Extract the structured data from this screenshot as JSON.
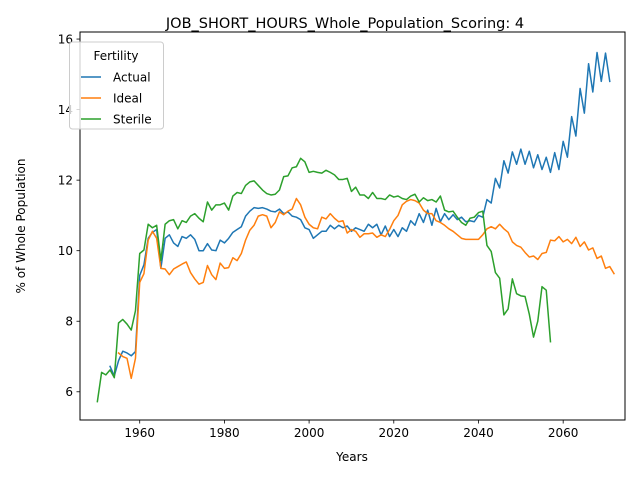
{
  "chart_data": {
    "type": "line",
    "title": "JOB_SHORT_HOURS_Whole_Population_Scoring: 4",
    "xlabel": "Years",
    "ylabel": "% of Whole Population",
    "xlim": [
      1945.9,
      2074.6
    ],
    "ylim": [
      5.2,
      16.2
    ],
    "x_ticks": [
      1960,
      1980,
      2000,
      2020,
      2040,
      2060
    ],
    "y_ticks": [
      6,
      8,
      10,
      12,
      14,
      16
    ],
    "grid": false,
    "legend": {
      "title": "Fertility",
      "placement": "upper-left"
    },
    "series": [
      {
        "name": "Actual",
        "color": "#1f77b4",
        "x_start": 1953,
        "values": [
          6.72,
          6.45,
          6.88,
          7.15,
          7.1,
          7.02,
          7.14,
          9.3,
          9.6,
          10.35,
          10.52,
          10.6,
          9.5,
          10.35,
          10.45,
          10.22,
          10.12,
          10.4,
          10.35,
          10.45,
          10.32,
          10.0,
          10.0,
          10.2,
          10.02,
          10.0,
          10.3,
          10.22,
          10.35,
          10.52,
          10.6,
          10.68,
          10.98,
          11.12,
          11.22,
          11.2,
          11.22,
          11.18,
          11.12,
          11.1,
          11.18,
          11.05,
          11.1,
          10.98,
          10.95,
          10.88,
          10.65,
          10.6,
          10.35,
          10.45,
          10.55,
          10.55,
          10.72,
          10.62,
          10.72,
          10.65,
          10.7,
          10.55,
          10.65,
          10.6,
          10.55,
          10.75,
          10.65,
          10.75,
          10.45,
          10.7,
          10.4,
          10.6,
          10.4,
          10.65,
          10.55,
          10.85,
          10.72,
          11.05,
          10.8,
          11.15,
          10.72,
          11.2,
          10.82,
          11.05,
          10.88,
          11.02,
          10.88,
          10.95,
          10.82,
          10.85,
          10.82,
          11.0,
          10.95,
          11.45,
          11.35,
          12.05,
          11.78,
          12.55,
          12.2,
          12.8,
          12.45,
          12.88,
          12.45,
          12.82,
          12.35,
          12.72,
          12.3,
          12.65,
          12.22,
          12.78,
          12.3,
          13.1,
          12.65,
          13.8,
          13.25,
          14.6,
          13.9,
          15.3,
          14.5,
          15.62,
          14.8,
          15.6,
          14.8
        ]
      },
      {
        "name": "Ideal",
        "color": "#ff7f0e",
        "x_start": 1955,
        "values": [
          7.1,
          7.0,
          6.95,
          6.38,
          6.95,
          9.1,
          9.35,
          10.3,
          10.55,
          10.35,
          9.5,
          9.48,
          9.32,
          9.48,
          9.55,
          9.62,
          9.68,
          9.38,
          9.2,
          9.05,
          9.1,
          9.58,
          9.32,
          9.18,
          9.65,
          9.5,
          9.52,
          9.8,
          9.72,
          9.92,
          10.3,
          10.58,
          10.72,
          10.98,
          11.02,
          10.98,
          10.65,
          10.8,
          11.1,
          11.02,
          11.12,
          11.18,
          11.48,
          11.3,
          10.95,
          10.75,
          10.65,
          10.62,
          10.95,
          10.9,
          11.05,
          10.92,
          10.82,
          10.85,
          10.5,
          10.6,
          10.55,
          10.38,
          10.48,
          10.48,
          10.5,
          10.38,
          10.45,
          10.4,
          10.6,
          10.85,
          11.0,
          11.3,
          11.4,
          11.45,
          11.42,
          11.35,
          11.15,
          11.05,
          11.05,
          10.85,
          10.8,
          10.72,
          10.62,
          10.55,
          10.45,
          10.35,
          10.32,
          10.32,
          10.32,
          10.32,
          10.45,
          10.62,
          10.68,
          10.62,
          10.75,
          10.62,
          10.52,
          10.25,
          10.15,
          10.1,
          9.95,
          9.82,
          9.85,
          9.75,
          9.92,
          9.95,
          10.3,
          10.28,
          10.4,
          10.25,
          10.32,
          10.2,
          10.38,
          10.12,
          10.25,
          10.02,
          10.08,
          9.78,
          9.85,
          9.5,
          9.55,
          9.35
        ]
      },
      {
        "name": "Sterile",
        "color": "#2ca02c",
        "x_start": 1950,
        "values": [
          5.72,
          6.55,
          6.48,
          6.62,
          6.4,
          7.95,
          8.05,
          7.92,
          7.75,
          8.3,
          9.92,
          10.02,
          10.75,
          10.65,
          10.72,
          9.72,
          10.75,
          10.85,
          10.88,
          10.62,
          10.85,
          10.8,
          10.98,
          11.05,
          10.92,
          10.82,
          11.38,
          11.15,
          11.3,
          11.3,
          11.35,
          11.15,
          11.55,
          11.65,
          11.62,
          11.85,
          11.95,
          11.98,
          11.85,
          11.72,
          11.62,
          11.58,
          11.6,
          11.72,
          12.1,
          12.12,
          12.35,
          12.38,
          12.62,
          12.52,
          12.22,
          12.25,
          12.22,
          12.2,
          12.28,
          12.22,
          12.15,
          12.02,
          12.02,
          12.05,
          11.68,
          11.8,
          11.58,
          11.58,
          11.48,
          11.65,
          11.48,
          11.48,
          11.45,
          11.58,
          11.52,
          11.55,
          11.48,
          11.45,
          11.55,
          11.6,
          11.38,
          11.5,
          11.42,
          11.45,
          11.38,
          11.55,
          11.15,
          11.1,
          11.12,
          10.95,
          10.8,
          10.72,
          10.92,
          10.95,
          11.08,
          11.12,
          10.15,
          9.98,
          9.38,
          9.22,
          8.18,
          8.35,
          9.2,
          8.78,
          8.72,
          8.7,
          8.2,
          7.55,
          8.0,
          8.98,
          8.88,
          7.42
        ]
      }
    ]
  }
}
